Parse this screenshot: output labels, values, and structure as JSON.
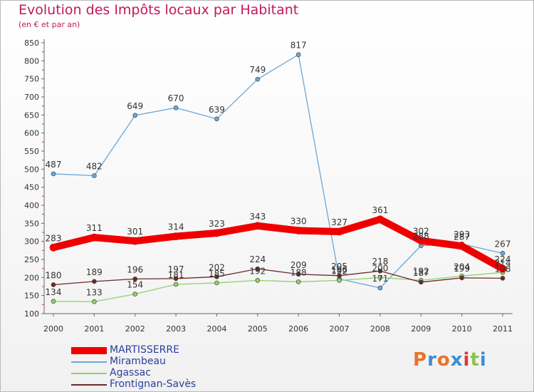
{
  "title": "Evolution des Impôts locaux par Habitant",
  "subtitle": "(en € et par an)",
  "logo": {
    "letters": [
      "P",
      "r",
      "o",
      "x",
      "i",
      "t",
      "i"
    ],
    "colors": [
      "#e8732a",
      "#3a8fd8",
      "#e8732a",
      "#3a8fd8",
      "#d93a3a",
      "#8bc34a",
      "#3a8fd8"
    ]
  },
  "chart_data": {
    "type": "line",
    "title": "Evolution des Impôts locaux par Habitant",
    "ylabel": "(en € et par an)",
    "xlabel": "",
    "ylim": [
      100,
      850
    ],
    "ytick_step": 50,
    "grid": false,
    "legend_position": "bottom-left",
    "categories": [
      "2000",
      "2001",
      "2002",
      "2003",
      "2004",
      "2005",
      "2006",
      "2007",
      "2008",
      "2009",
      "2010",
      "2011"
    ],
    "series": [
      {
        "name": "MARTISSERRE",
        "color": "#ee0000",
        "width": 10,
        "marker": 5,
        "values": [
          283,
          311,
          301,
          314,
          323,
          343,
          330,
          327,
          361,
          302,
          287,
          224
        ]
      },
      {
        "name": "Mirambeau",
        "color": "#6aa7d8",
        "width": 1.3,
        "marker": 3,
        "values": [
          487,
          482,
          649,
          670,
          639,
          749,
          817,
          196,
          171,
          288,
          293,
          267
        ]
      },
      {
        "name": "Agassac",
        "color": "#8fd16a",
        "width": 1.3,
        "marker": 3,
        "values": [
          134,
          133,
          154,
          181,
          185,
          192,
          188,
          192,
          200,
          192,
          204,
          214
        ]
      },
      {
        "name": "Frontignan-Savès",
        "color": "#6b2a2a",
        "width": 1.3,
        "marker": 3,
        "values": [
          180,
          189,
          196,
          197,
          202,
          224,
          209,
          205,
          218,
          187,
          199,
          198
        ]
      }
    ]
  }
}
